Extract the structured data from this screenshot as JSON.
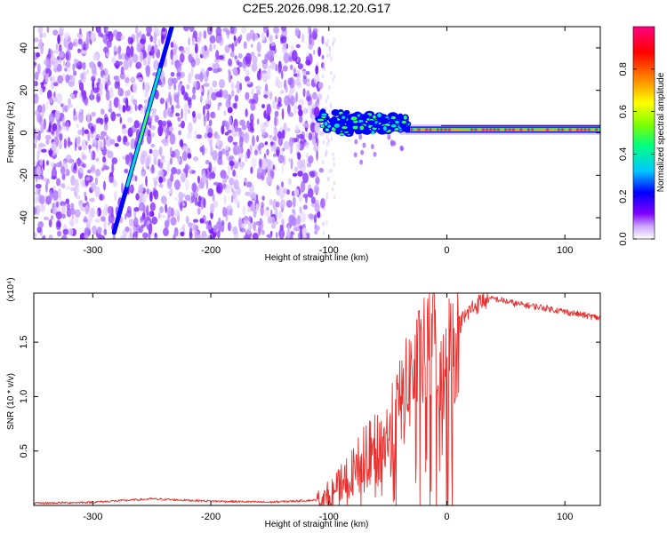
{
  "title": "C2E5.2026.098.12.20.G17",
  "chart_data": [
    {
      "type": "heatmap",
      "name": "spectrogram",
      "xlabel": "Height of straight line (km)",
      "ylabel": "Frequency (Hz)",
      "xlim": [
        -350,
        130
      ],
      "ylim": [
        -50,
        50
      ],
      "x_ticks": [
        -300,
        -200,
        -100,
        0,
        100
      ],
      "y_ticks": [
        -40,
        -20,
        0,
        20,
        40
      ],
      "x_tick_labels": [
        "-300",
        "-200",
        "-100",
        "0",
        "100"
      ],
      "y_tick_labels": [
        "-40",
        "-20",
        "0",
        "20",
        "40"
      ],
      "colorbar": {
        "label": "Normalized spectral amplitude",
        "range": [
          0,
          1
        ],
        "ticks": [
          0.0,
          0.2,
          0.4,
          0.6,
          0.8
        ],
        "tick_labels": [
          "0.0",
          "0.2",
          "0.4",
          "0.6",
          "0.8"
        ],
        "colors": [
          "#ffffff",
          "#c9a6ff",
          "#8000ff",
          "#0000ff",
          "#00c8ff",
          "#00ff80",
          "#80ff00",
          "#ffff00",
          "#ff8000",
          "#ff0000",
          "#ff0080"
        ]
      },
      "features": {
        "noise_region_x": [
          -350,
          -105
        ],
        "diagonal_line": {
          "x_start": -282,
          "f_start": -47,
          "x_end": -233,
          "f_end": 50
        },
        "signal_band": {
          "x_start": -108,
          "x_end": 130,
          "f_center": 1.5
        }
      }
    },
    {
      "type": "line",
      "name": "snr",
      "xlabel": "Height of straight line (km)",
      "ylabel": "SNR (10 * v/v)",
      "scale_label": "(x10⁴)",
      "xlim": [
        -350,
        130
      ],
      "ylim": [
        0,
        1.95
      ],
      "x_ticks": [
        -300,
        -200,
        -100,
        0,
        100
      ],
      "y_ticks": [
        0.5,
        1.0,
        1.5
      ],
      "x_tick_labels": [
        "-300",
        "-200",
        "-100",
        "0",
        "100"
      ],
      "y_tick_labels": [
        "0.5",
        "1.0",
        "1.5"
      ],
      "line_color": "#e8302e",
      "series": [
        {
          "name": "SNR",
          "x": [
            -350,
            -300,
            -250,
            -200,
            -150,
            -110,
            -95,
            -80,
            -70,
            -60,
            -50,
            -40,
            -30,
            -20,
            -10,
            0,
            10,
            20,
            30,
            40,
            60,
            80,
            100,
            130
          ],
          "values": [
            0.02,
            0.03,
            0.06,
            0.04,
            0.03,
            0.05,
            0.12,
            0.3,
            0.45,
            0.5,
            0.6,
            0.9,
            1.2,
            1.35,
            1.55,
            1.3,
            1.65,
            1.8,
            1.88,
            1.9,
            1.85,
            1.82,
            1.78,
            1.72
          ]
        }
      ]
    }
  ]
}
